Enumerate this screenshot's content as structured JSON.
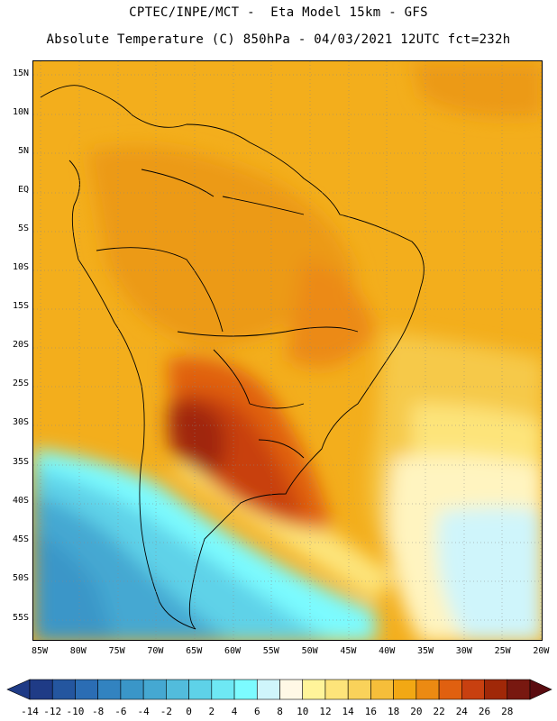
{
  "header": {
    "line1": "CPTEC/INPE/MCT -  Eta Model 15km - GFS",
    "line2": "Absolute Temperature (C) 850hPa - 04/03/2021 12UTC fct=232h"
  },
  "map": {
    "lat_labels": [
      "15N",
      "10N",
      "5N",
      "EQ",
      "5S",
      "10S",
      "15S",
      "20S",
      "25S",
      "30S",
      "35S",
      "40S",
      "45S",
      "50S",
      "55S"
    ],
    "lon_labels": [
      "85W",
      "80W",
      "75W",
      "70W",
      "65W",
      "60W",
      "55W",
      "50W",
      "45W",
      "40W",
      "35W",
      "30W",
      "25W",
      "20W"
    ],
    "field": "Absolute Temperature (C) 850hPa",
    "region": "South America"
  },
  "colorbar": {
    "labels": [
      "-14",
      "-12",
      "-10",
      "-8",
      "-6",
      "-4",
      "-2",
      "0",
      "2",
      "4",
      "6",
      "8",
      "10",
      "12",
      "14",
      "16",
      "18",
      "20",
      "22",
      "24",
      "26",
      "28"
    ],
    "colors": [
      "#1f3b86",
      "#24569f",
      "#2b6db4",
      "#3283c0",
      "#3a96c8",
      "#45a8d2",
      "#52bcdc",
      "#5ed2e8",
      "#6ee8f4",
      "#7cfbff",
      "#cff5fb",
      "#fff8e6",
      "#fff49a",
      "#fde47a",
      "#f9d25a",
      "#f6be3a",
      "#f2a814",
      "#ec8a12",
      "#e06010",
      "#c84010",
      "#a02808",
      "#781810"
    ]
  }
}
